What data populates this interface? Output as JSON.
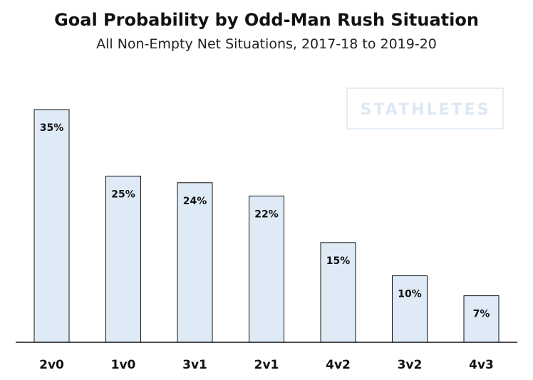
{
  "chart_data": {
    "type": "bar",
    "title": "Goal Probability by Odd-Man Rush Situation",
    "subtitle": "All Non-Empty Net Situations, 2017-18 to 2019-20",
    "categories": [
      "2v0",
      "1v0",
      "3v1",
      "2v1",
      "4v2",
      "3v2",
      "4v3"
    ],
    "values": [
      35,
      25,
      24,
      22,
      15,
      10,
      7
    ],
    "value_labels": [
      "35%",
      "25%",
      "24%",
      "22%",
      "15%",
      "10%",
      "7%"
    ],
    "ylim": [
      0,
      35
    ],
    "grid": false,
    "bar_color": "#deebf7",
    "bar_outline": "#111111"
  },
  "watermark": {
    "text": "STATHLETES",
    "color": "#dce8f3"
  }
}
